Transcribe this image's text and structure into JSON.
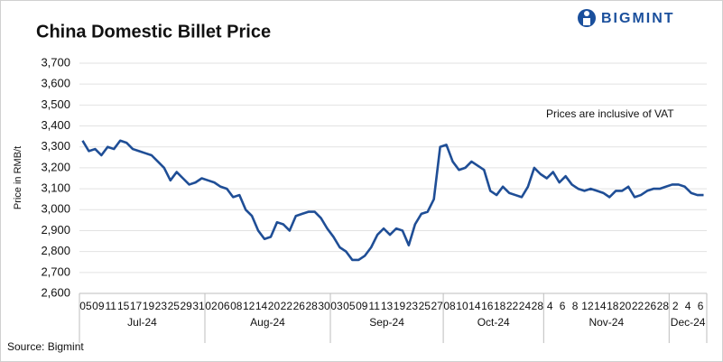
{
  "brand": "BIGMINT",
  "source": "Source: Bigmint",
  "chart_data": {
    "type": "line",
    "title": "China Domestic Billet Price",
    "y_label": "Price in RMB/t",
    "annotation": "Prices are inclusive of VAT",
    "months": [
      "Jul-24",
      "Aug-24",
      "Sep-24",
      "Oct-24",
      "Nov-24",
      "Dec-24"
    ],
    "categories": [
      "05",
      null,
      "09",
      null,
      "11",
      null,
      "15",
      null,
      "17",
      null,
      "19",
      null,
      "23",
      null,
      "25",
      null,
      "29",
      null,
      "31",
      null,
      "02",
      null,
      "06",
      null,
      "08",
      null,
      "12",
      null,
      "14",
      null,
      "20",
      null,
      "22",
      null,
      "26",
      null,
      "28",
      null,
      "30",
      null,
      "03",
      null,
      "05",
      null,
      "09",
      null,
      "11",
      null,
      "13",
      null,
      "19",
      null,
      "23",
      null,
      "25",
      null,
      "27",
      null,
      "08",
      null,
      "10",
      null,
      "14",
      null,
      "16",
      null,
      "18",
      null,
      "22",
      null,
      "24",
      null,
      "28",
      null,
      "4",
      null,
      "6",
      null,
      "8",
      null,
      "12",
      null,
      "14",
      null,
      "18",
      null,
      "20",
      null,
      "22",
      null,
      "26",
      null,
      "28",
      null,
      "2",
      null,
      "4",
      null,
      "6",
      null
    ],
    "series": [
      {
        "name": "Price",
        "color": "#1f4e96",
        "values": [
          3330,
          3280,
          3290,
          3260,
          3300,
          3290,
          3330,
          3320,
          3290,
          3280,
          3270,
          3260,
          3230,
          3200,
          3140,
          3180,
          3150,
          3120,
          3130,
          3150,
          3140,
          3130,
          3110,
          3100,
          3060,
          3070,
          3000,
          2970,
          2900,
          2860,
          2870,
          2940,
          2930,
          2900,
          2970,
          2980,
          2990,
          2990,
          2960,
          2910,
          2870,
          2820,
          2800,
          2760,
          2760,
          2780,
          2820,
          2880,
          2910,
          2880,
          2910,
          2900,
          2830,
          2930,
          2980,
          2990,
          3050,
          3300,
          3310,
          3230,
          3190,
          3200,
          3230,
          3210,
          3190,
          3090,
          3070,
          3110,
          3080,
          3070,
          3060,
          3110,
          3200,
          3170,
          3150,
          3180,
          3130,
          3160,
          3120,
          3100,
          3090,
          3100,
          3090,
          3080,
          3060,
          3090,
          3090,
          3110,
          3060,
          3070,
          3090,
          3100,
          3100,
          3110,
          3120,
          3120,
          3110,
          3080,
          3070,
          3070
        ]
      }
    ],
    "ylim": [
      2600,
      3700
    ],
    "yticks": [
      {
        "value": 2600,
        "label": "2,600"
      },
      {
        "value": 2700,
        "label": "2,700"
      },
      {
        "value": 2800,
        "label": "2,800"
      },
      {
        "value": 2900,
        "label": "2,900"
      },
      {
        "value": 3000,
        "label": "3,000"
      },
      {
        "value": 3100,
        "label": "3,100"
      },
      {
        "value": 3200,
        "label": "3,200"
      },
      {
        "value": 3300,
        "label": "3,300"
      },
      {
        "value": 3400,
        "label": "3,400"
      },
      {
        "value": 3500,
        "label": "3,500"
      },
      {
        "value": 3600,
        "label": "3,600"
      },
      {
        "value": 3700,
        "label": "3,700"
      }
    ],
    "grid": true
  }
}
